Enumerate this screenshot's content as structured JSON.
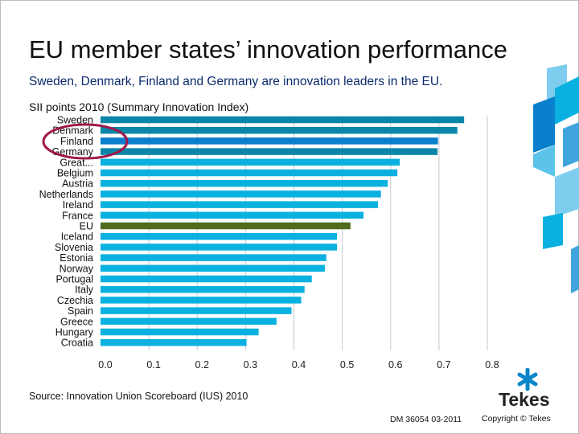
{
  "slide": {
    "title": "EU member states’ innovation performance",
    "subtitle": "Sweden, Denmark, Finland and Germany are innovation leaders in the EU.",
    "source": "Source: Innovation Union Scoreboard (IUS) 2010",
    "doc_id": "DM 36054  03-2011",
    "copyright": "Copyright © Tekes",
    "logo_text": "Tekes"
  },
  "chart_data": {
    "type": "bar",
    "orientation": "horizontal",
    "title": "SII points 2010 (Summary Innovation Index)",
    "categories": [
      "Sweden",
      "Denmark",
      "Finland",
      "Germany",
      "Great...",
      "Belgium",
      "Austria",
      "Netherlands",
      "Ireland",
      "France",
      "EU",
      "Iceland",
      "Slovenia",
      "Estonia",
      "Norway",
      "Portugal",
      "Italy",
      "Czechia",
      "Spain",
      "Greece",
      "Hungary",
      "Croatia"
    ],
    "values": [
      0.752,
      0.738,
      0.698,
      0.697,
      0.619,
      0.614,
      0.594,
      0.58,
      0.574,
      0.544,
      0.517,
      0.489,
      0.489,
      0.467,
      0.464,
      0.437,
      0.422,
      0.415,
      0.395,
      0.364,
      0.327,
      0.302
    ],
    "xlim": [
      0,
      0.8
    ],
    "xticks": [
      "0.0",
      "0.1",
      "0.2",
      "0.3",
      "0.4",
      "0.5",
      "0.6",
      "0.7",
      "0.8"
    ],
    "grid": true,
    "highlighted": [
      "Denmark",
      "Finland",
      "Germany"
    ],
    "colors": {
      "default": "#0ab1e0",
      "leader": "#0a86a8",
      "finland": "#0a7fcb",
      "eu": "#4e6b1e",
      "circle": "#a0184a",
      "grid": "#c8c8d0"
    }
  }
}
